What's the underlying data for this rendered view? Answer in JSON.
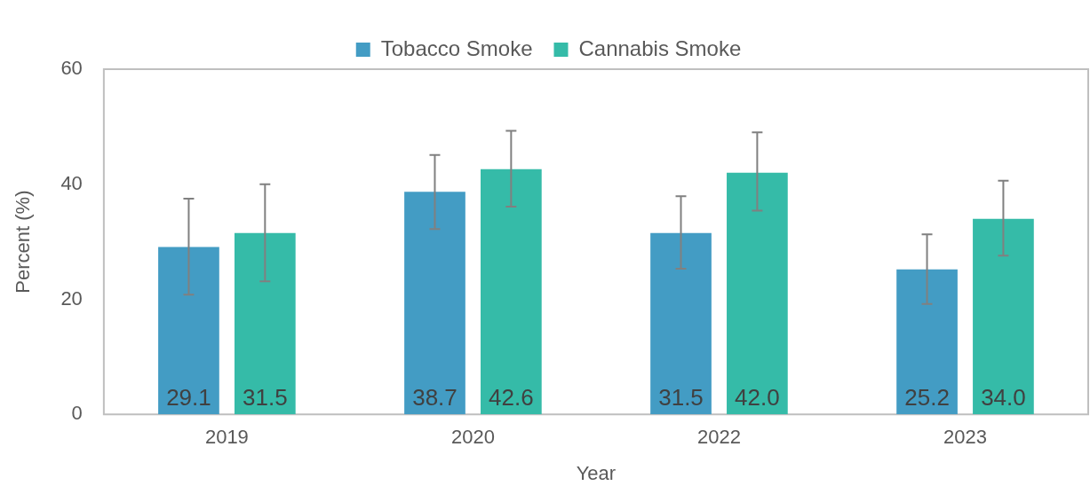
{
  "chart_data": {
    "type": "bar",
    "xlabel": "Year",
    "ylabel": "Percent (%)",
    "categories": [
      "2019",
      "2020",
      "2022",
      "2023"
    ],
    "series": [
      {
        "name": "Tobacco Smoke",
        "color": "#439cc4",
        "values": [
          29.1,
          38.7,
          31.5,
          25.2
        ],
        "value_labels": [
          "29.1",
          "38.7",
          "31.5",
          "25.2"
        ],
        "errors": [
          [
            20.8,
            37.5
          ],
          [
            32.2,
            45.1
          ],
          [
            25.3,
            37.9
          ],
          [
            19.2,
            31.3
          ]
        ]
      },
      {
        "name": "Cannabis Smoke",
        "color": "#35bba8",
        "values": [
          31.5,
          42.6,
          42.0,
          34.0
        ],
        "value_labels": [
          "31.5",
          "42.6",
          "42.0",
          "34.0"
        ],
        "errors": [
          [
            23.1,
            40.0
          ],
          [
            36.1,
            49.3
          ],
          [
            35.4,
            49.0
          ],
          [
            27.6,
            40.6
          ]
        ]
      }
    ],
    "ylim": [
      0,
      60
    ],
    "yticks": [
      0,
      20,
      40,
      60
    ],
    "grid": false,
    "legend": "top"
  }
}
